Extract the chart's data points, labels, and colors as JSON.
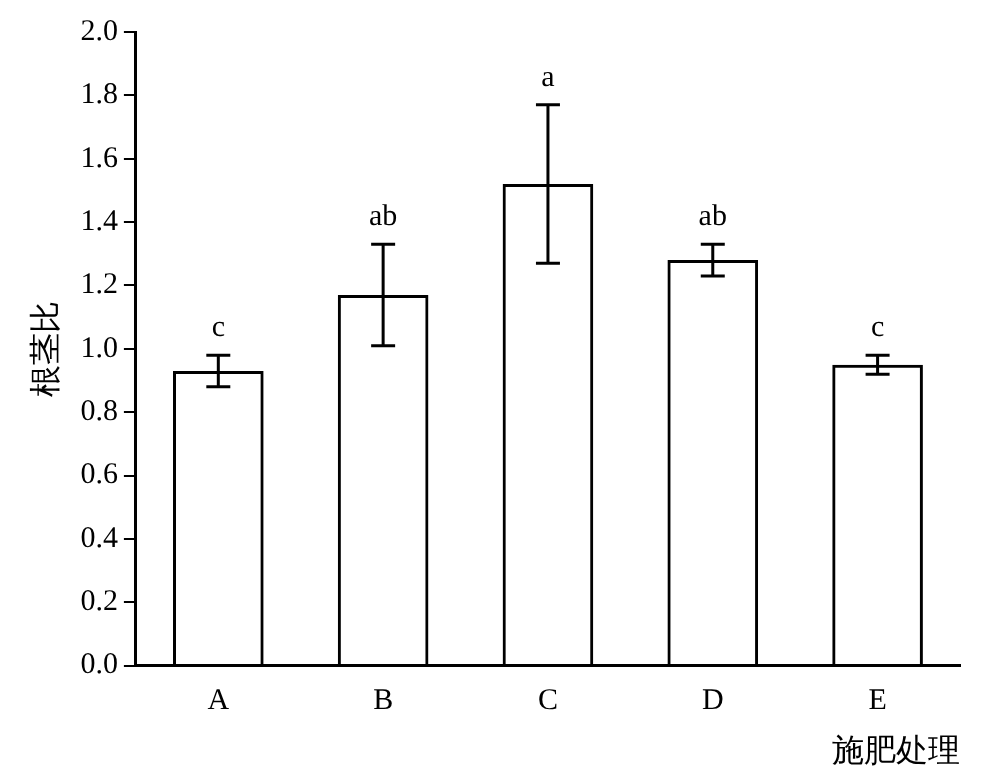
{
  "chart_data": {
    "type": "bar",
    "xlabel": "施肥处理",
    "ylabel": "根茎比",
    "categories": [
      "A",
      "B",
      "C",
      "D",
      "E"
    ],
    "values": [
      0.93,
      1.17,
      1.52,
      1.28,
      0.95
    ],
    "errors": [
      0.05,
      0.16,
      0.25,
      0.05,
      0.03
    ],
    "color": "#000000",
    "ylim": [
      0,
      2.0
    ],
    "yticks": [
      {
        "value": 0,
        "label": "0.0"
      },
      {
        "value": 0.2,
        "label": "0.2"
      },
      {
        "value": 0.4,
        "label": "0.4"
      },
      {
        "value": 0.6,
        "label": "0.6"
      },
      {
        "value": 0.8,
        "label": "0.8"
      },
      {
        "value": 1.0,
        "label": "1.0"
      },
      {
        "value": 1.2,
        "label": "1.2"
      },
      {
        "value": 1.4,
        "label": "1.4"
      },
      {
        "value": 1.6,
        "label": "1.6"
      },
      {
        "value": 1.8,
        "label": "1.8"
      },
      {
        "value": 2.0,
        "label": "2.0"
      }
    ],
    "grid": false,
    "legend": false,
    "annotations": [
      {
        "text": "c",
        "x": "A",
        "y": 0.98
      },
      {
        "text": "ab",
        "x": "B",
        "y": 1.33
      },
      {
        "text": "a",
        "x": "C",
        "y": 1.77
      },
      {
        "text": "ab",
        "x": "D",
        "y": 1.33
      },
      {
        "text": "c",
        "x": "E",
        "y": 0.98
      }
    ]
  }
}
